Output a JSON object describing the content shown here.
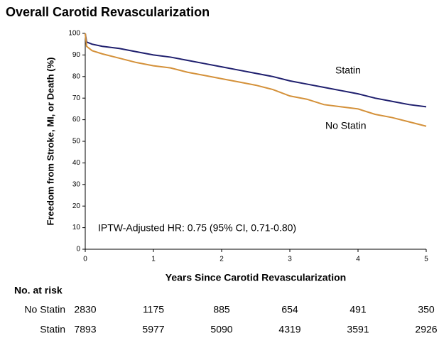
{
  "chart_data": {
    "type": "line",
    "title": "Overall Carotid Revascularization",
    "x_label": "Years Since Carotid Revascularization",
    "y_label": "Freedom from Stroke, MI, or Death (%)",
    "annotation": "IPTW-Adjusted HR: 0.75 (95% CI, 0.71-0.80)",
    "x": [
      0,
      0.02,
      0.1,
      0.25,
      0.5,
      0.75,
      1,
      1.25,
      1.5,
      1.75,
      2,
      2.25,
      2.5,
      2.75,
      3,
      3.25,
      3.5,
      3.75,
      4,
      4.25,
      4.5,
      4.75,
      5
    ],
    "series": [
      {
        "name": "Statin",
        "color": "#1f1f6e",
        "values": [
          100,
          96,
          95,
          94,
          93,
          91.5,
          90,
          89,
          87.5,
          86,
          84.5,
          83,
          81.5,
          80,
          78,
          76.5,
          75,
          73.5,
          72,
          70,
          68.5,
          67,
          66
        ]
      },
      {
        "name": "No Statin",
        "color": "#d4913a",
        "values": [
          100,
          94,
          92,
          90.5,
          88.5,
          86.5,
          85,
          84,
          82,
          80.5,
          79,
          77.5,
          76,
          74,
          71,
          69.5,
          67,
          66,
          65,
          62.5,
          61,
          59,
          57
        ]
      }
    ],
    "xlim": [
      0,
      5
    ],
    "xticks": [
      0,
      1,
      2,
      3,
      4,
      5
    ],
    "ylim": [
      0,
      100
    ],
    "yticks": [
      0,
      10,
      20,
      30,
      40,
      50,
      60,
      70,
      80,
      90,
      100
    ],
    "risk_table": {
      "title": "No. at risk",
      "rows": [
        {
          "name": "No Statin",
          "values": [
            2830,
            1175,
            885,
            654,
            491,
            350
          ]
        },
        {
          "name": "Statin",
          "values": [
            7893,
            5977,
            5090,
            4319,
            3591,
            2926
          ]
        }
      ]
    }
  }
}
